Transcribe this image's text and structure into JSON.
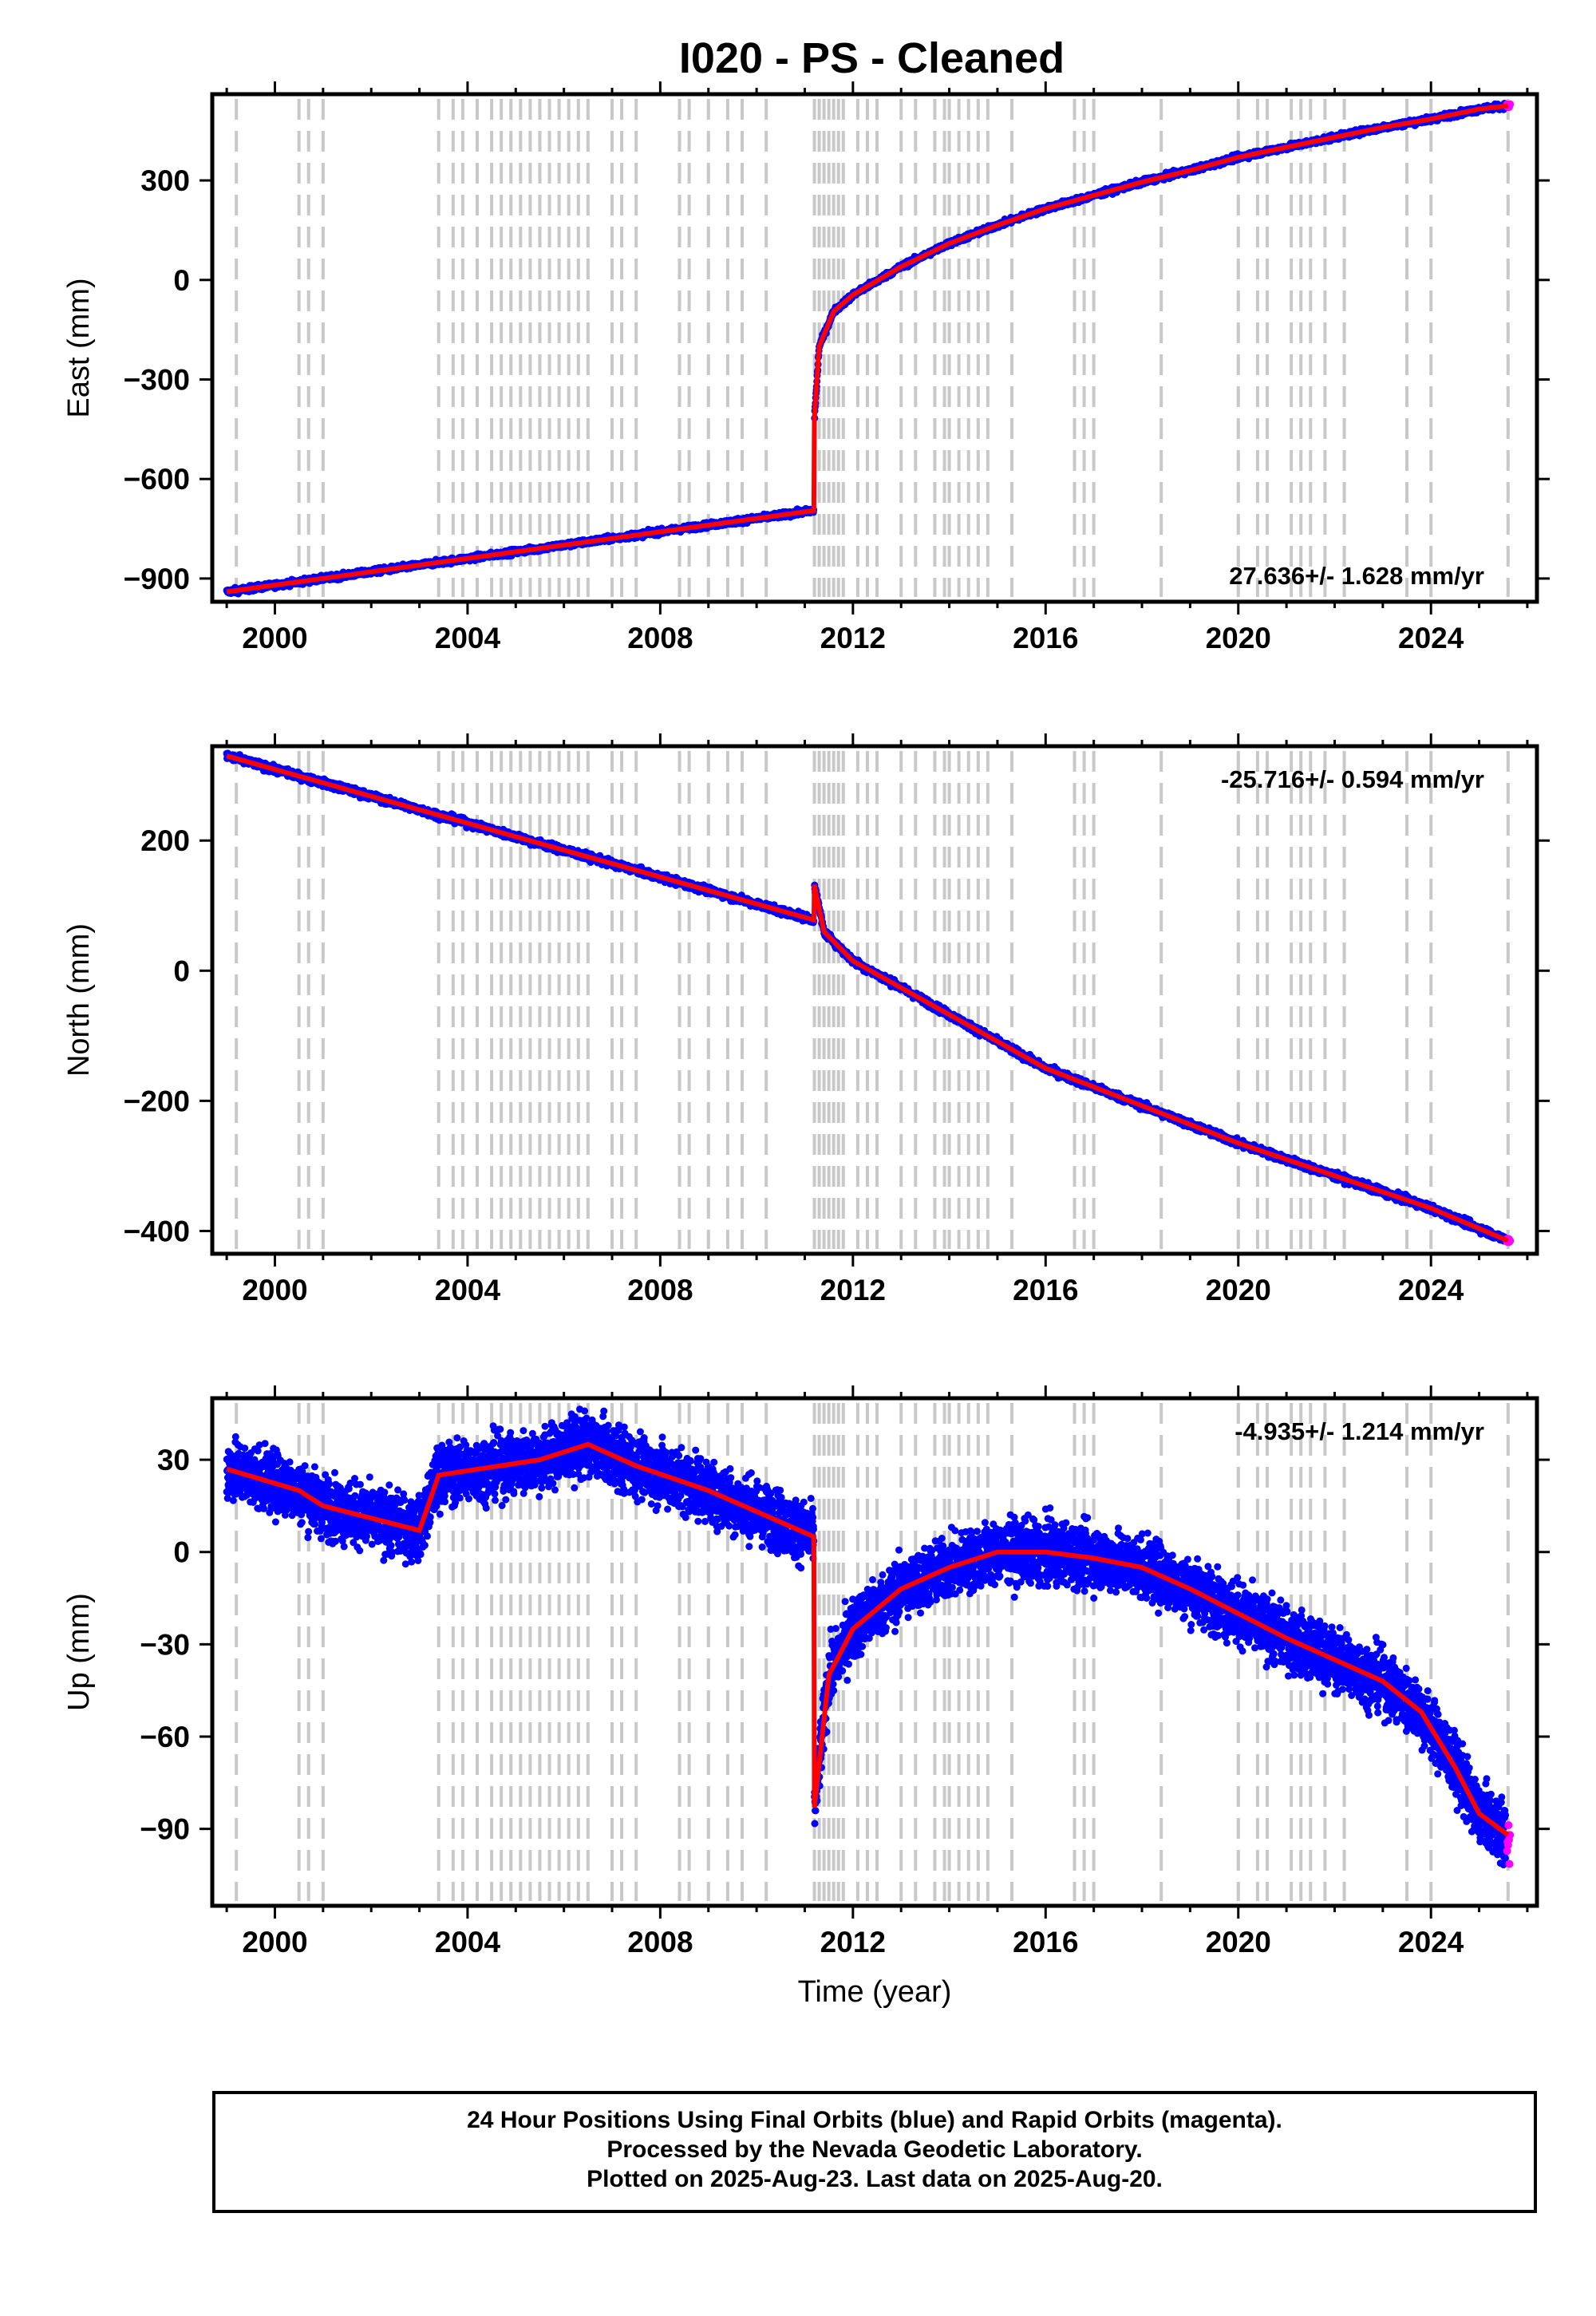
{
  "title": "I020  - PS - Cleaned",
  "footer": {
    "lines": [
      "24 Hour Positions Using Final Orbits (blue) and Rapid Orbits (magenta).",
      "Processed by the Nevada Geodetic Laboratory.",
      "Plotted on 2025-Aug-23. Last data on 2025-Aug-20."
    ]
  },
  "colors": {
    "final_orbits": "#0000ff",
    "rapid_orbits": "#ff00ff",
    "model": "#ff0000",
    "steps": "#c8c8c8"
  },
  "chart_data": [
    {
      "type": "scatter",
      "name": "east",
      "ylabel": "East (mm)",
      "xlabel": "",
      "xlim": [
        1998.7,
        2026.2
      ],
      "ylim": [
        -970,
        560
      ],
      "xticks": [
        2000,
        2004,
        2008,
        2012,
        2016,
        2020,
        2024
      ],
      "yticks": [
        -900,
        -600,
        -300,
        0,
        300
      ],
      "ytick_labels": [
        "−900",
        "−600",
        "−300",
        "0",
        "300"
      ],
      "rate": "27.636+/- 1.628 mm/yr",
      "rate_position": "bottom-right",
      "model": [
        [
          1999.0,
          -940
        ],
        [
          2011.19,
          -695
        ],
        [
          2011.2,
          -420
        ],
        [
          2011.3,
          -200
        ],
        [
          2011.6,
          -95
        ],
        [
          2012.0,
          -45
        ],
        [
          2013.0,
          40
        ],
        [
          2014.0,
          110
        ],
        [
          2015.0,
          165
        ],
        [
          2016.0,
          215
        ],
        [
          2017.0,
          255
        ],
        [
          2018.0,
          295
        ],
        [
          2019.0,
          330
        ],
        [
          2020.0,
          370
        ],
        [
          2021.0,
          400
        ],
        [
          2022.0,
          430
        ],
        [
          2023.0,
          460
        ],
        [
          2024.0,
          485
        ],
        [
          2025.0,
          515
        ],
        [
          2025.6,
          525
        ]
      ],
      "noise": 6
    },
    {
      "type": "scatter",
      "name": "north",
      "ylabel": "North (mm)",
      "xlabel": "",
      "xlim": [
        1998.7,
        2026.2
      ],
      "ylim": [
        -435,
        345
      ],
      "xticks": [
        2000,
        2004,
        2008,
        2012,
        2016,
        2020,
        2024
      ],
      "yticks": [
        -400,
        -200,
        0,
        200
      ],
      "ytick_labels": [
        "−400",
        "−200",
        "0",
        "200"
      ],
      "rate": "-25.716+/- 0.594 mm/yr",
      "rate_position": "top-right",
      "model": [
        [
          1999.0,
          330
        ],
        [
          2011.19,
          78
        ],
        [
          2011.2,
          132
        ],
        [
          2011.4,
          60
        ],
        [
          2012.0,
          15
        ],
        [
          2016.0,
          -150
        ],
        [
          2020.0,
          -265
        ],
        [
          2024.0,
          -365
        ],
        [
          2025.6,
          -415
        ]
      ],
      "noise": 4
    },
    {
      "type": "scatter",
      "name": "up",
      "ylabel": "Up (mm)",
      "xlabel": "Time (year)",
      "xlim": [
        1998.7,
        2026.2
      ],
      "ylim": [
        -115,
        50
      ],
      "xticks": [
        2000,
        2004,
        2008,
        2012,
        2016,
        2020,
        2024
      ],
      "yticks": [
        -90,
        -60,
        -30,
        0,
        30
      ],
      "ytick_labels": [
        "−90",
        "−60",
        "−30",
        "0",
        "30"
      ],
      "rate": "-4.935+/- 1.214 mm/yr",
      "rate_position": "top-right",
      "model": [
        [
          1999.0,
          27
        ],
        [
          2000.5,
          20
        ],
        [
          2001.0,
          15
        ],
        [
          2003.0,
          7
        ],
        [
          2003.4,
          25
        ],
        [
          2005.5,
          30
        ],
        [
          2006.5,
          35
        ],
        [
          2007.5,
          28
        ],
        [
          2009.0,
          20
        ],
        [
          2011.19,
          5
        ],
        [
          2011.2,
          -83
        ],
        [
          2011.5,
          -40
        ],
        [
          2012.0,
          -25
        ],
        [
          2013.0,
          -12
        ],
        [
          2014.0,
          -5
        ],
        [
          2015.0,
          0
        ],
        [
          2016.0,
          0
        ],
        [
          2017.0,
          -2
        ],
        [
          2018.0,
          -5
        ],
        [
          2019.0,
          -12
        ],
        [
          2020.0,
          -20
        ],
        [
          2021.0,
          -28
        ],
        [
          2022.0,
          -35
        ],
        [
          2023.0,
          -42
        ],
        [
          2023.8,
          -52
        ],
        [
          2024.5,
          -70
        ],
        [
          2025.0,
          -85
        ],
        [
          2025.6,
          -92
        ]
      ],
      "noise": 7
    }
  ]
}
